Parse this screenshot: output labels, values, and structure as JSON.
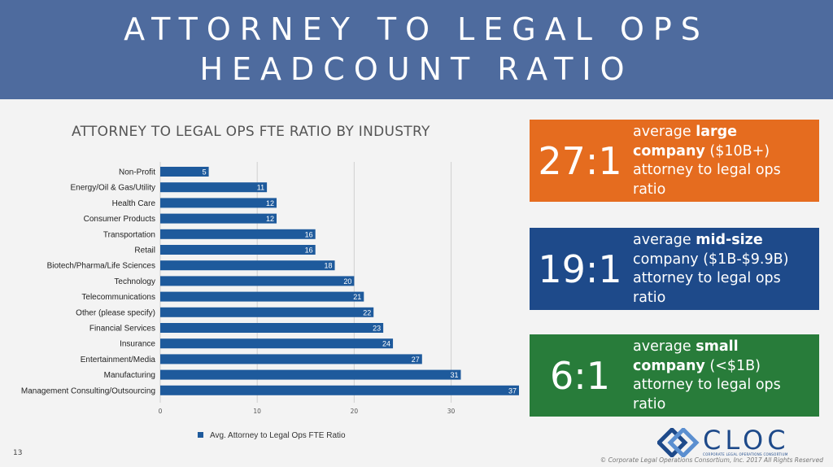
{
  "banner": {
    "title_line1": "ATTORNEY TO LEGAL OPS",
    "title_line2": "HEADCOUNT RATIO"
  },
  "chart_data": {
    "type": "bar",
    "orientation": "horizontal",
    "title": "ATTORNEY TO LEGAL OPS FTE RATIO BY INDUSTRY",
    "categories": [
      "Non-Profit",
      "Energy/Oil & Gas/Utility",
      "Health Care",
      "Consumer Products",
      "Transportation",
      "Retail",
      "Biotech/Pharma/Life Sciences",
      "Technology",
      "Telecommunications",
      "Other (please specify)",
      "Financial Services",
      "Insurance",
      "Entertainment/Media",
      "Manufacturing",
      "Management Consulting/Outsourcing"
    ],
    "series": [
      {
        "name": "Avg. Attorney to Legal Ops FTE Ratio",
        "values": [
          5,
          11,
          12,
          12,
          16,
          16,
          18,
          20,
          21,
          22,
          23,
          24,
          27,
          31,
          37
        ],
        "color": "#1e5a9c"
      }
    ],
    "x_ticks": [
      "0",
      "10",
      "20",
      "30"
    ],
    "xlim": [
      0,
      37
    ],
    "grid": "vertical",
    "legend": "bottom"
  },
  "stats": {
    "large": {
      "ratio": "27:1",
      "pre": "average ",
      "bold": "large company",
      "post": " ($10B+) attorney to legal ops ratio",
      "color": "#e56c1f"
    },
    "mid": {
      "ratio": "19:1",
      "pre": "average ",
      "bold": "mid-size",
      "post": " company ($1B-$9.9B) attorney to legal ops ratio",
      "color": "#1e4a8a"
    },
    "small": {
      "ratio": "6:1",
      "pre": "average ",
      "bold": "small company",
      "post": " (<$1B) attorney to legal ops ratio",
      "color": "#287c3a"
    }
  },
  "footer": {
    "page_number": "13",
    "copyright": "© Corporate Legal Operations Consortium, Inc. 2017 All Rights Reserved",
    "logo_text": "CLOC",
    "logo_subtext": "CORPORATE LEGAL OPERATIONS CONSORTIUM"
  }
}
